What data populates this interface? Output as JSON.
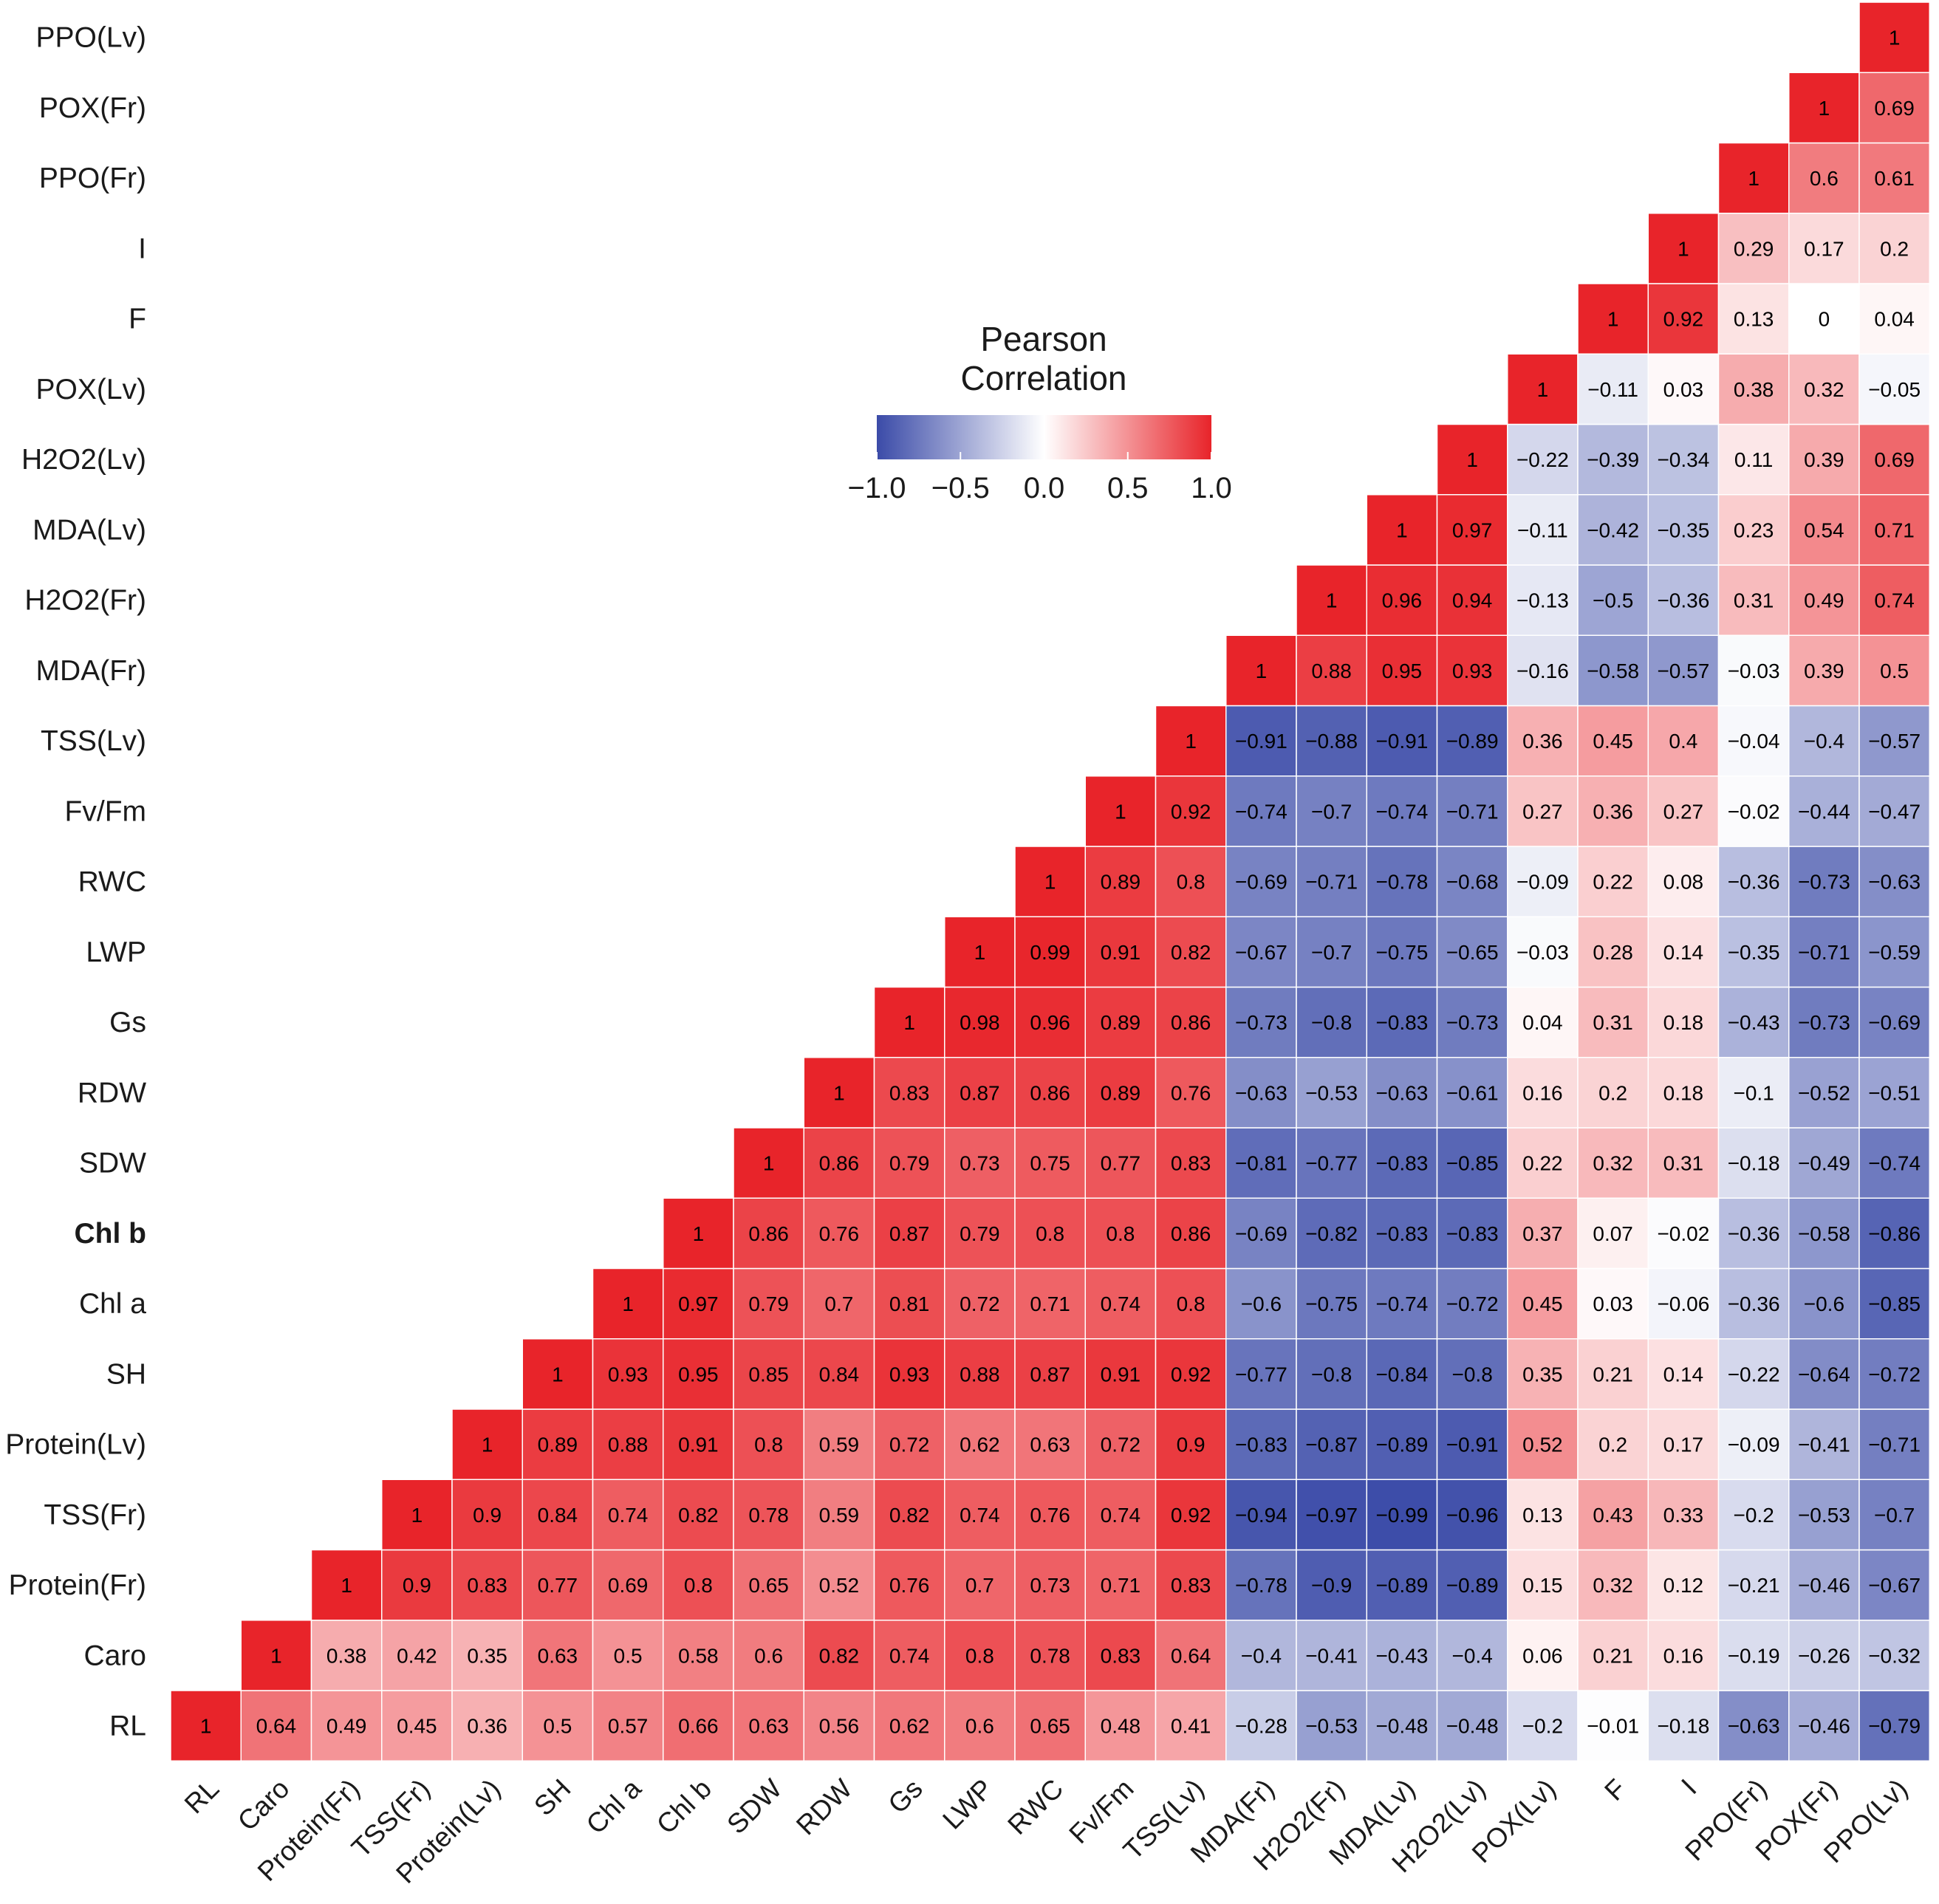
{
  "chart_data": {
    "type": "heatmap",
    "title": "",
    "legend": {
      "title_line1": "Pearson",
      "title_line2": "Correlation",
      "ticks": [
        "−1.0",
        "−0.5",
        "0.0",
        "0.5",
        "1.0"
      ],
      "tick_values": [
        -1.0,
        -0.5,
        0.0,
        0.5,
        1.0
      ],
      "range": [
        -1.0,
        1.0
      ],
      "placement": "top-center"
    },
    "colors": {
      "low": "#3b4ba8",
      "mid": "#ffffff",
      "high": "#e8242a",
      "grid": "#ffffff"
    },
    "variables": [
      "RL",
      "Caro",
      "Protein(Fr)",
      "TSS(Fr)",
      "Protein(Lv)",
      "SH",
      "Chl a",
      "Chl b",
      "SDW",
      "RDW",
      "Gs",
      "LWP",
      "RWC",
      "Fv/Fm",
      "TSS(Lv)",
      "MDA(Fr)",
      "H2O2(Fr)",
      "MDA(Lv)",
      "H2O2(Lv)",
      "POX(Lv)",
      "F",
      "I",
      "PPO(Fr)",
      "POX(Fr)",
      "PPO(Lv)"
    ],
    "bold_labels": [
      "Chl b"
    ],
    "values": [
      [
        1,
        0.64,
        0.49,
        0.45,
        0.36,
        0.5,
        0.57,
        0.66,
        0.63,
        0.56,
        0.62,
        0.6,
        0.65,
        0.48,
        0.41,
        -0.28,
        -0.53,
        -0.48,
        -0.48,
        -0.2,
        -0.01,
        -0.18,
        -0.63,
        -0.46,
        -0.79
      ],
      [
        null,
        1,
        0.38,
        0.42,
        0.35,
        0.63,
        0.5,
        0.58,
        0.6,
        0.82,
        0.74,
        0.8,
        0.78,
        0.83,
        0.64,
        -0.4,
        -0.41,
        -0.43,
        -0.4,
        0.06,
        0.21,
        0.16,
        -0.19,
        -0.26,
        -0.32
      ],
      [
        null,
        null,
        1,
        0.9,
        0.83,
        0.77,
        0.69,
        0.8,
        0.65,
        0.52,
        0.76,
        0.7,
        0.73,
        0.71,
        0.83,
        -0.78,
        -0.9,
        -0.89,
        -0.89,
        0.15,
        0.32,
        0.12,
        -0.21,
        -0.46,
        -0.67
      ],
      [
        null,
        null,
        null,
        1,
        0.9,
        0.84,
        0.74,
        0.82,
        0.78,
        0.59,
        0.82,
        0.74,
        0.76,
        0.74,
        0.92,
        -0.94,
        -0.97,
        -0.99,
        -0.96,
        0.13,
        0.43,
        0.33,
        -0.2,
        -0.53,
        -0.7
      ],
      [
        null,
        null,
        null,
        null,
        1,
        0.89,
        0.88,
        0.91,
        0.8,
        0.59,
        0.72,
        0.62,
        0.63,
        0.72,
        0.9,
        -0.83,
        -0.87,
        -0.89,
        -0.91,
        0.52,
        0.2,
        0.17,
        -0.09,
        -0.41,
        -0.71
      ],
      [
        null,
        null,
        null,
        null,
        null,
        1,
        0.93,
        0.95,
        0.85,
        0.84,
        0.93,
        0.88,
        0.87,
        0.91,
        0.92,
        -0.77,
        -0.8,
        -0.84,
        -0.8,
        0.35,
        0.21,
        0.14,
        -0.22,
        -0.64,
        -0.72
      ],
      [
        null,
        null,
        null,
        null,
        null,
        null,
        1,
        0.97,
        0.79,
        0.7,
        0.81,
        0.72,
        0.71,
        0.74,
        0.8,
        -0.6,
        -0.75,
        -0.74,
        -0.72,
        0.45,
        0.03,
        -0.06,
        -0.36,
        -0.6,
        -0.85
      ],
      [
        null,
        null,
        null,
        null,
        null,
        null,
        null,
        1,
        0.86,
        0.76,
        0.87,
        0.79,
        0.8,
        0.8,
        0.86,
        -0.69,
        -0.82,
        -0.83,
        -0.83,
        0.37,
        0.07,
        -0.02,
        -0.36,
        -0.58,
        -0.86
      ],
      [
        null,
        null,
        null,
        null,
        null,
        null,
        null,
        null,
        1,
        0.86,
        0.79,
        0.73,
        0.75,
        0.77,
        0.83,
        -0.81,
        -0.77,
        -0.83,
        -0.85,
        0.22,
        0.32,
        0.31,
        -0.18,
        -0.49,
        -0.74
      ],
      [
        null,
        null,
        null,
        null,
        null,
        null,
        null,
        null,
        null,
        1,
        0.83,
        0.87,
        0.86,
        0.89,
        0.76,
        -0.63,
        -0.53,
        -0.63,
        -0.61,
        0.16,
        0.2,
        0.18,
        -0.1,
        -0.52,
        -0.51
      ],
      [
        null,
        null,
        null,
        null,
        null,
        null,
        null,
        null,
        null,
        null,
        1,
        0.98,
        0.96,
        0.89,
        0.86,
        -0.73,
        -0.8,
        -0.83,
        -0.73,
        0.04,
        0.31,
        0.18,
        -0.43,
        -0.73,
        -0.69
      ],
      [
        null,
        null,
        null,
        null,
        null,
        null,
        null,
        null,
        null,
        null,
        null,
        1,
        0.99,
        0.91,
        0.82,
        -0.67,
        -0.7,
        -0.75,
        -0.65,
        -0.03,
        0.28,
        0.14,
        -0.35,
        -0.71,
        -0.59
      ],
      [
        null,
        null,
        null,
        null,
        null,
        null,
        null,
        null,
        null,
        null,
        null,
        null,
        1,
        0.89,
        0.8,
        -0.69,
        -0.71,
        -0.78,
        -0.68,
        -0.09,
        0.22,
        0.08,
        -0.36,
        -0.73,
        -0.63
      ],
      [
        null,
        null,
        null,
        null,
        null,
        null,
        null,
        null,
        null,
        null,
        null,
        null,
        null,
        1,
        0.92,
        -0.74,
        -0.7,
        -0.74,
        -0.71,
        0.27,
        0.36,
        0.27,
        -0.02,
        -0.44,
        -0.47
      ],
      [
        null,
        null,
        null,
        null,
        null,
        null,
        null,
        null,
        null,
        null,
        null,
        null,
        null,
        null,
        1,
        -0.91,
        -0.88,
        -0.91,
        -0.89,
        0.36,
        0.45,
        0.4,
        -0.04,
        -0.4,
        -0.57
      ],
      [
        null,
        null,
        null,
        null,
        null,
        null,
        null,
        null,
        null,
        null,
        null,
        null,
        null,
        null,
        null,
        1,
        0.88,
        0.95,
        0.93,
        -0.16,
        -0.58,
        -0.57,
        -0.03,
        0.39,
        0.5
      ],
      [
        null,
        null,
        null,
        null,
        null,
        null,
        null,
        null,
        null,
        null,
        null,
        null,
        null,
        null,
        null,
        null,
        1,
        0.96,
        0.94,
        -0.13,
        -0.5,
        -0.36,
        0.31,
        0.49,
        0.74
      ],
      [
        null,
        null,
        null,
        null,
        null,
        null,
        null,
        null,
        null,
        null,
        null,
        null,
        null,
        null,
        null,
        null,
        null,
        1,
        0.97,
        -0.11,
        -0.42,
        -0.35,
        0.23,
        0.54,
        0.71
      ],
      [
        null,
        null,
        null,
        null,
        null,
        null,
        null,
        null,
        null,
        null,
        null,
        null,
        null,
        null,
        null,
        null,
        null,
        null,
        1,
        -0.22,
        -0.39,
        -0.34,
        0.11,
        0.39,
        0.69
      ],
      [
        null,
        null,
        null,
        null,
        null,
        null,
        null,
        null,
        null,
        null,
        null,
        null,
        null,
        null,
        null,
        null,
        null,
        null,
        null,
        1,
        -0.11,
        0.03,
        0.38,
        0.32,
        -0.05
      ],
      [
        null,
        null,
        null,
        null,
        null,
        null,
        null,
        null,
        null,
        null,
        null,
        null,
        null,
        null,
        null,
        null,
        null,
        null,
        null,
        null,
        1,
        0.92,
        0.13,
        0,
        0.04
      ],
      [
        null,
        null,
        null,
        null,
        null,
        null,
        null,
        null,
        null,
        null,
        null,
        null,
        null,
        null,
        null,
        null,
        null,
        null,
        null,
        null,
        null,
        1,
        0.29,
        0.17,
        0.2
      ],
      [
        null,
        null,
        null,
        null,
        null,
        null,
        null,
        null,
        null,
        null,
        null,
        null,
        null,
        null,
        null,
        null,
        null,
        null,
        null,
        null,
        null,
        null,
        1,
        0.6,
        0.61
      ],
      [
        null,
        null,
        null,
        null,
        null,
        null,
        null,
        null,
        null,
        null,
        null,
        null,
        null,
        null,
        null,
        null,
        null,
        null,
        null,
        null,
        null,
        null,
        null,
        1,
        0.69
      ],
      [
        null,
        null,
        null,
        null,
        null,
        null,
        null,
        null,
        null,
        null,
        null,
        null,
        null,
        null,
        null,
        null,
        null,
        null,
        null,
        null,
        null,
        null,
        null,
        null,
        1
      ]
    ]
  }
}
